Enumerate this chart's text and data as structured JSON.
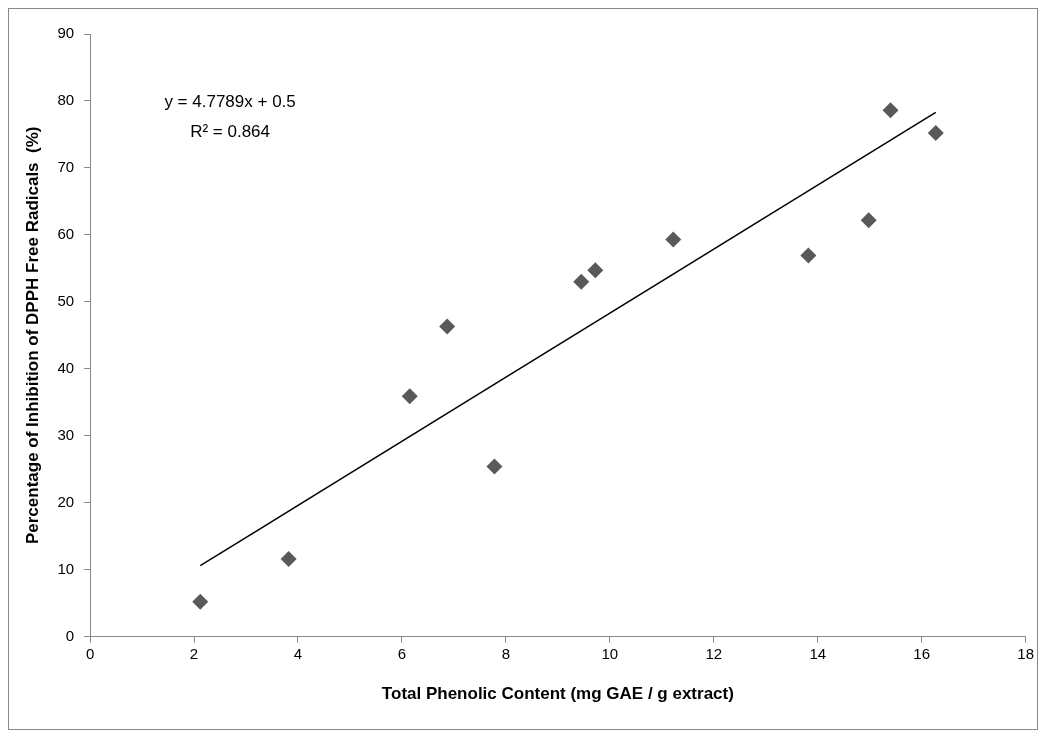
{
  "chart_data": {
    "type": "scatter",
    "xlabel": "Total Phenolic Content (mg GAE / g extract)",
    "ylabel": "Percentage of Inhibition of DPPH Free Radicals  (%)",
    "marker": "diamond",
    "grid": false,
    "legend": false,
    "xlim": [
      0,
      18
    ],
    "xticks": [
      0,
      2,
      4,
      6,
      8,
      10,
      12,
      14,
      16,
      18
    ],
    "ylim": [
      0,
      90
    ],
    "yticks": [
      0,
      10,
      20,
      30,
      40,
      50,
      60,
      70,
      80,
      90
    ],
    "annotations": [
      "y = 4.7789x + 0.5",
      "R² = 0.864"
    ],
    "series": [
      {
        "color": "#595959",
        "x": [
          2.12,
          3.82,
          6.15,
          6.87,
          7.78,
          9.45,
          9.72,
          11.22,
          13.82,
          14.98,
          15.4,
          16.27
        ],
        "values": [
          5.2,
          11.6,
          35.9,
          46.3,
          25.4,
          53.0,
          54.7,
          59.3,
          56.9,
          62.2,
          78.6,
          75.2
        ]
      },
      {
        "type": "line",
        "color": "#000000",
        "marker": "none",
        "x": [
          2.12,
          16.27
        ],
        "values": [
          10.6,
          78.3
        ]
      }
    ]
  }
}
